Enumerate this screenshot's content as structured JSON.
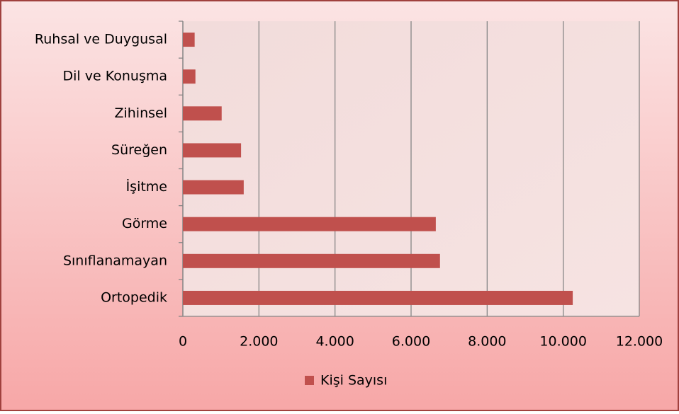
{
  "chart_data": {
    "type": "bar",
    "orientation": "horizontal",
    "categories": [
      "Ruhsal ve Duygusal",
      "Dil ve Konuşma",
      "Zihinsel",
      "Süreğen",
      "İşitme",
      "Görme",
      "Sınıflanamayan",
      "Ortopedik"
    ],
    "series": [
      {
        "name": "Kişi Sayısı",
        "color": "#c0504d",
        "values": [
          310,
          330,
          1020,
          1530,
          1600,
          6650,
          6760,
          10250
        ]
      }
    ],
    "xlim": [
      0,
      12000
    ],
    "xticks": [
      0,
      {
        "value": 2000,
        "label": "2.000"
      },
      {
        "value": 4000,
        "label": "4.000"
      },
      {
        "value": 6000,
        "label": "6.000"
      },
      {
        "value": 8000,
        "label": "8.000"
      },
      {
        "value": 10000,
        "label": "10.000"
      },
      {
        "value": 12000,
        "label": "12.000"
      }
    ],
    "grid": true,
    "legend": "bottom"
  }
}
